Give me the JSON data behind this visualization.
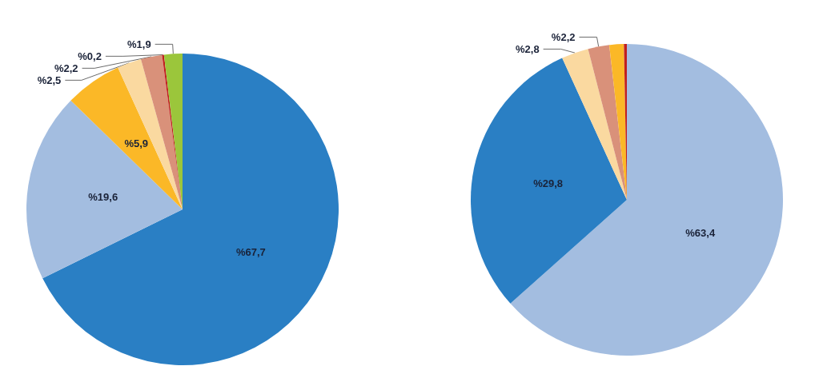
{
  "chart_data": [
    {
      "type": "pie",
      "categories": [
        null,
        null,
        null,
        null,
        null,
        null,
        null
      ],
      "values": [
        67.7,
        19.6,
        5.9,
        2.5,
        2.2,
        0.2,
        1.9
      ],
      "colors": [
        "#2a7fc4",
        "#a3bde0",
        "#fbb827",
        "#fad9a0",
        "#d9917a",
        "#c0201f",
        "#9bc63b"
      ],
      "value_labels": [
        "%67,7",
        "%19,6",
        "%5,9",
        "%2,5",
        "%2,2",
        "%0,2",
        "%1,9"
      ]
    },
    {
      "type": "pie",
      "categories": [
        null,
        null,
        null,
        null,
        null,
        null
      ],
      "values": [
        63.4,
        29.8,
        2.8,
        2.2,
        1.5,
        0.3
      ],
      "colors": [
        "#a3bde0",
        "#2a7fc4",
        "#fad9a0",
        "#d9917a",
        "#fbb827",
        "#c0201f"
      ],
      "value_labels": [
        "%63,4",
        "%29,8",
        "%2,8",
        "%2,2",
        null,
        null
      ]
    }
  ]
}
